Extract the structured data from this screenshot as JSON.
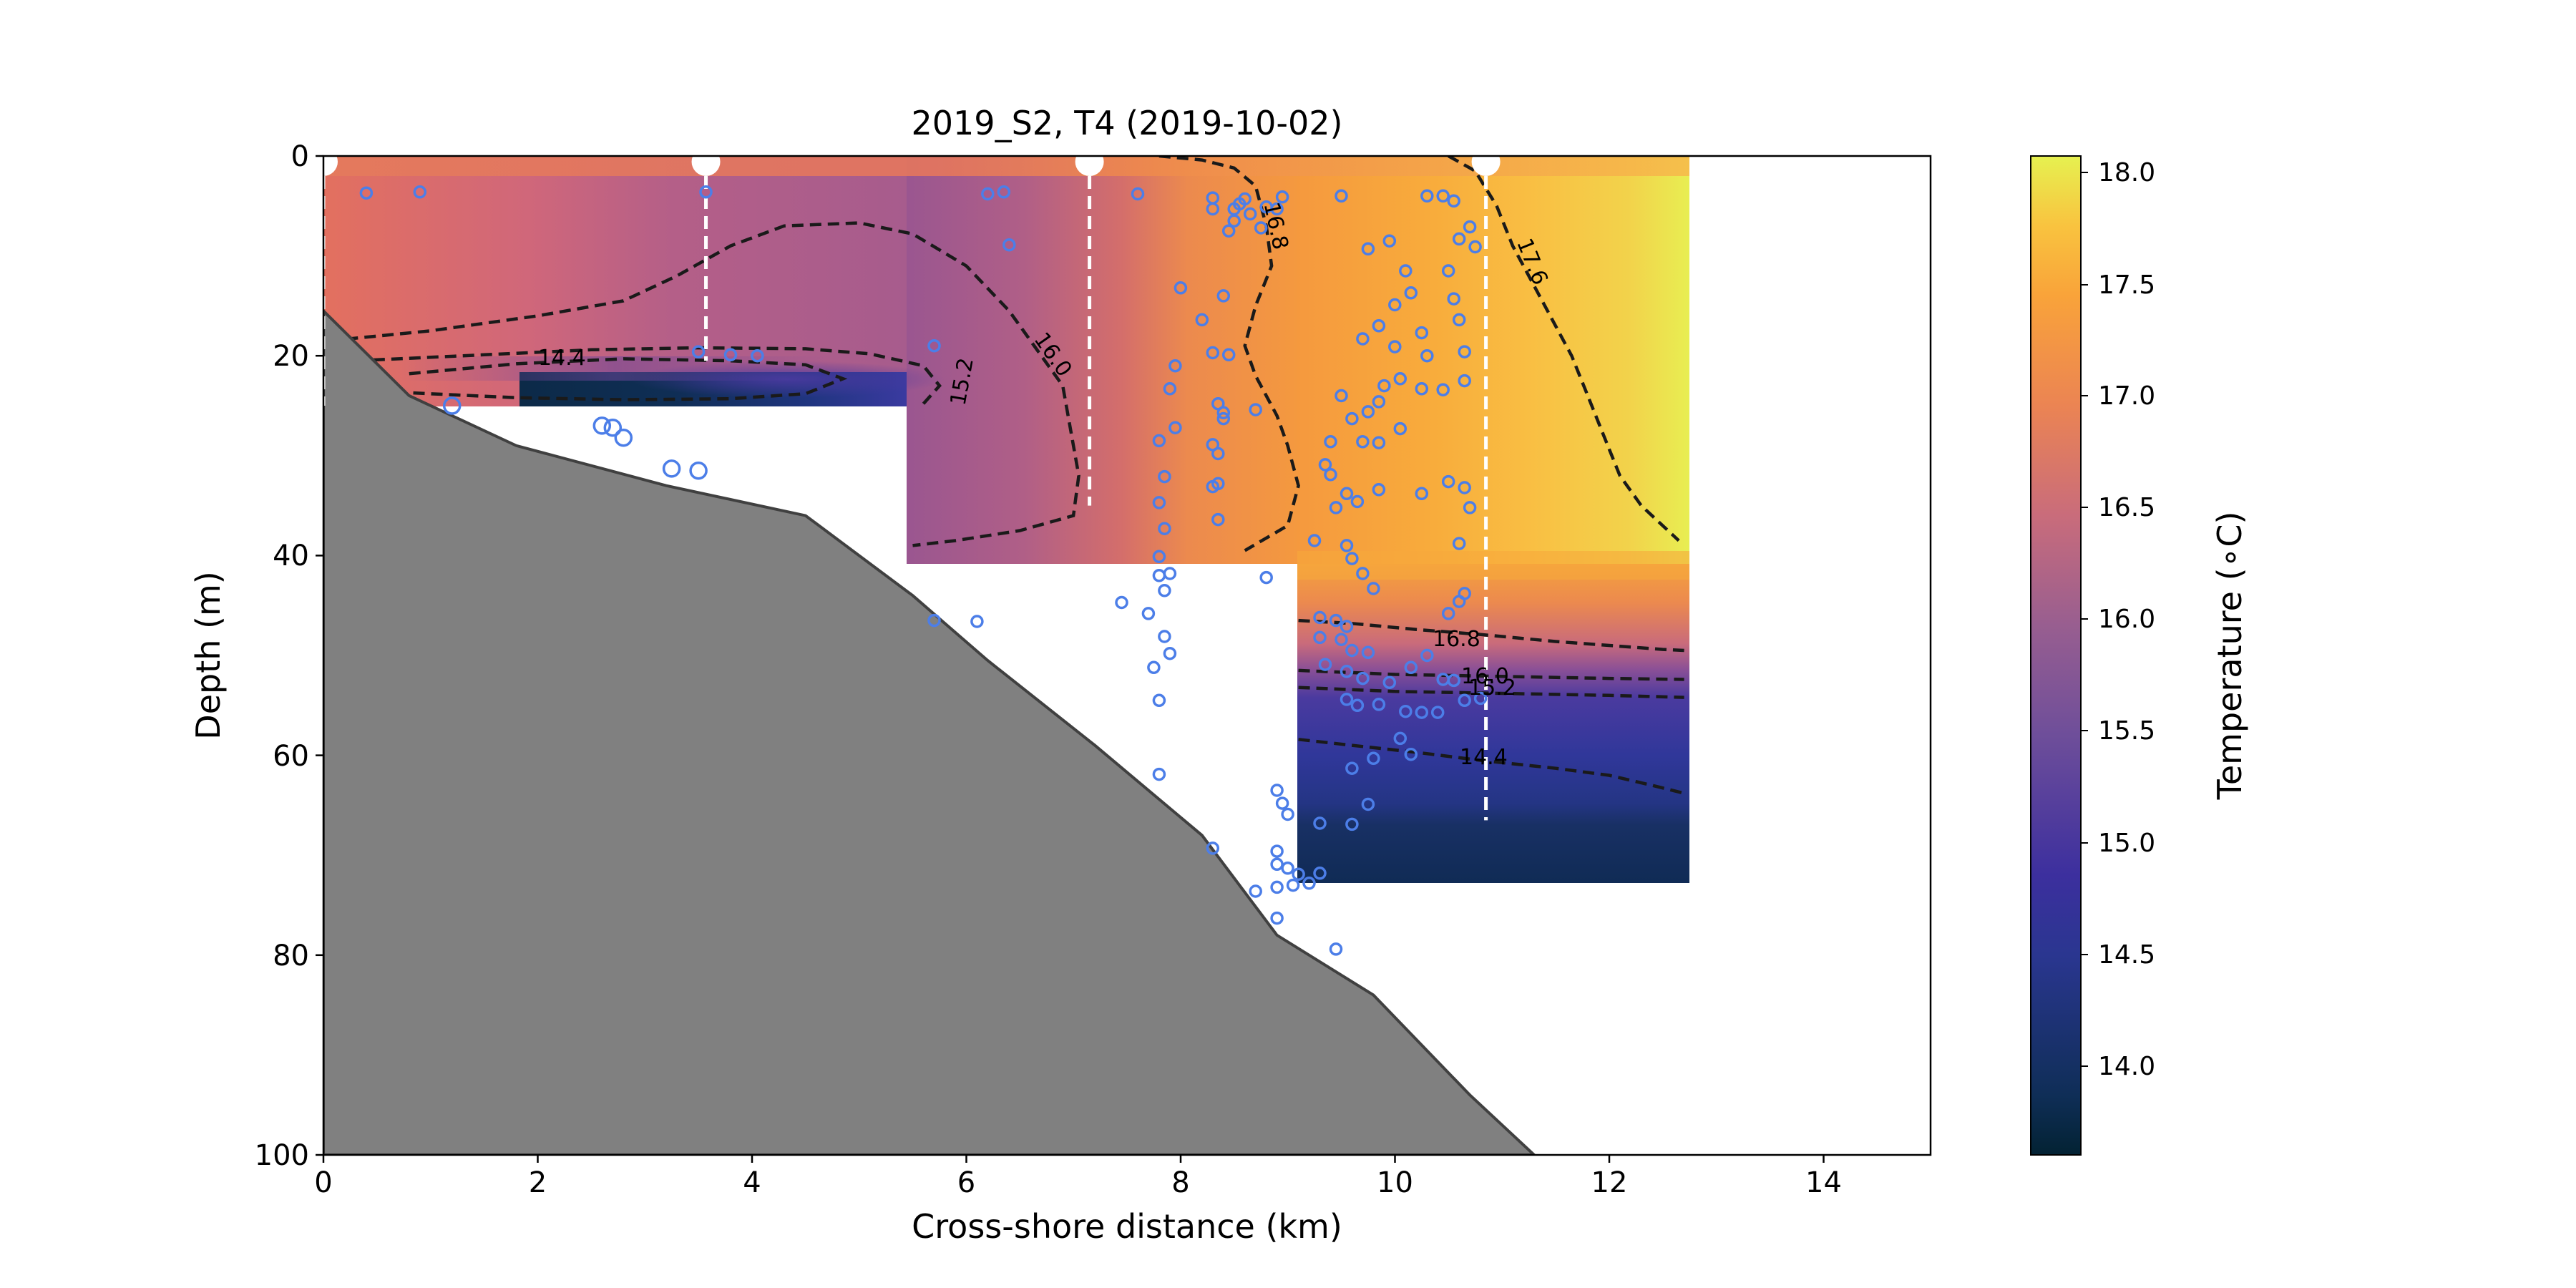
{
  "chart_data": {
    "type": "heatmap",
    "title": "2019_S2, T4 (2019-10-02)",
    "xlabel": "Cross-shore distance (km)",
    "ylabel": "Depth (m)",
    "xlim": [
      0,
      15
    ],
    "ylim": [
      100,
      0
    ],
    "xticks": [
      "0",
      "2",
      "4",
      "6",
      "8",
      "10",
      "12",
      "14"
    ],
    "yticks": [
      "0",
      "20",
      "40",
      "60",
      "80",
      "100"
    ],
    "colorbar": {
      "label": "Temperature (∘C)",
      "range": [
        13.6,
        18.1
      ],
      "ticks": [
        "14.0",
        "14.5",
        "15.0",
        "15.5",
        "16.0",
        "16.5",
        "17.0",
        "17.5",
        "18.0"
      ]
    },
    "bathymetry": {
      "x": [
        0,
        0.8,
        1.8,
        3.2,
        4.5,
        5.5,
        6.2,
        7.2,
        8.2,
        8.9,
        9.8,
        10.7,
        11.3
      ],
      "depth": [
        15.5,
        24,
        29,
        33,
        36,
        44,
        50.5,
        59,
        68,
        78,
        84,
        94,
        100
      ]
    },
    "casts": [
      {
        "x": 0.0,
        "max_depth": 25.0
      },
      {
        "x": 3.57,
        "max_depth": 20.5
      },
      {
        "x": 7.15,
        "max_depth": 35.0
      },
      {
        "x": 10.85,
        "max_depth": 66.5
      }
    ],
    "contour_labels": [
      "14.4",
      "15.2",
      "16.0",
      "16.8",
      "17.6",
      "16.8",
      "16.0",
      "15.2",
      "14.4"
    ],
    "contours": [
      {
        "level": 16.0,
        "x": [
          0.05,
          1.0,
          2.0,
          2.8,
          3.3,
          3.8,
          4.3,
          5.0,
          5.5,
          6.0,
          6.4,
          6.9,
          7.05,
          7.0,
          6.5,
          5.9,
          5.5
        ],
        "depth": [
          18.5,
          17.5,
          16,
          14.5,
          12,
          9,
          7,
          6.7,
          7.8,
          11,
          15.5,
          23,
          32,
          36,
          37.5,
          38.5,
          39
        ]
      },
      {
        "level": 15.2,
        "x": [
          0.3,
          1.5,
          2.5,
          3.5,
          4.5,
          5.1,
          5.6,
          5.75,
          5.6
        ],
        "depth": [
          20.5,
          19.9,
          19.4,
          19.2,
          19.3,
          19.8,
          21,
          23,
          24.8
        ]
      },
      {
        "level": 14.4,
        "x": [
          0.8,
          1.8,
          2.8,
          3.8,
          4.5,
          4.85,
          4.5,
          3.8,
          2.8,
          1.8,
          0.8
        ],
        "depth": [
          21.8,
          20.8,
          20.3,
          20.5,
          20.9,
          22.3,
          23.8,
          24.3,
          24.4,
          24.2,
          23.7
        ]
      },
      {
        "level": 16.8,
        "x": [
          7.8,
          8.2,
          8.5,
          8.7,
          8.8,
          8.85,
          8.7,
          8.6,
          8.7,
          8.9,
          9.0,
          9.1,
          9.0,
          8.6
        ],
        "depth": [
          0,
          0.4,
          1.2,
          3,
          7,
          11,
          15,
          19,
          22,
          26,
          29,
          33,
          37,
          39.5
        ]
      },
      {
        "level": 17.6,
        "x": [
          10.5,
          10.75,
          10.95,
          11.1,
          11.3,
          11.5,
          11.65,
          11.8,
          11.95,
          12.1,
          12.3,
          12.65
        ],
        "depth": [
          0,
          1.5,
          5,
          9,
          13,
          17,
          20,
          24,
          28,
          32,
          35,
          38.5
        ]
      },
      {
        "level": 16.8,
        "x": [
          9.1,
          9.6,
          10.2,
          10.8,
          11.5,
          12.0,
          12.5,
          12.7
        ],
        "depth": [
          46.5,
          46.8,
          47.4,
          47.9,
          48.6,
          49.0,
          49.4,
          49.5
        ]
      },
      {
        "level": 16.0,
        "x": [
          9.1,
          10.0,
          11.0,
          12.0,
          12.7
        ],
        "depth": [
          51.5,
          51.9,
          52.1,
          52.3,
          52.4
        ]
      },
      {
        "level": 15.2,
        "x": [
          9.1,
          10.0,
          11.0,
          12.0,
          12.7
        ],
        "depth": [
          53.2,
          53.6,
          53.8,
          54.0,
          54.2
        ]
      },
      {
        "level": 14.4,
        "x": [
          9.1,
          9.6,
          10.2,
          10.8,
          11.5,
          12.0,
          12.4,
          12.7
        ],
        "depth": [
          58.4,
          59.0,
          59.7,
          60.5,
          61.3,
          62.0,
          63.0,
          63.8
        ]
      }
    ],
    "sensor_points": [
      {
        "x": 0.4,
        "depth": 3.7
      },
      {
        "x": 0.9,
        "depth": 3.6
      },
      {
        "x": 3.57,
        "depth": 3.6
      },
      {
        "x": 3.5,
        "depth": 19.6
      },
      {
        "x": 3.8,
        "depth": 19.9
      },
      {
        "x": 4.05,
        "depth": 20.0
      },
      {
        "x": 5.7,
        "depth": 19.0
      },
      {
        "x": 6.2,
        "depth": 3.8
      },
      {
        "x": 6.35,
        "depth": 3.6
      },
      {
        "x": 6.4,
        "depth": 8.9
      },
      {
        "x": 1.2,
        "depth": 25.0
      },
      {
        "x": 2.6,
        "depth": 27.0
      },
      {
        "x": 2.7,
        "depth": 27.2
      },
      {
        "x": 2.8,
        "depth": 28.2
      },
      {
        "x": 3.25,
        "depth": 31.3
      },
      {
        "x": 3.5,
        "depth": 31.5
      },
      {
        "x": 5.7,
        "depth": 46.5
      },
      {
        "x": 6.1,
        "depth": 46.6
      },
      {
        "x": 7.45,
        "depth": 44.7
      },
      {
        "x": 7.6,
        "depth": 3.8
      },
      {
        "x": 8.0,
        "depth": 13.2
      },
      {
        "x": 7.95,
        "depth": 21.0
      },
      {
        "x": 7.9,
        "depth": 23.3
      },
      {
        "x": 7.8,
        "depth": 28.5
      },
      {
        "x": 7.95,
        "depth": 27.2
      },
      {
        "x": 7.85,
        "depth": 32.1
      },
      {
        "x": 7.8,
        "depth": 34.7
      },
      {
        "x": 7.85,
        "depth": 37.3
      },
      {
        "x": 7.8,
        "depth": 40.1
      },
      {
        "x": 7.9,
        "depth": 41.8
      },
      {
        "x": 7.8,
        "depth": 42.0
      },
      {
        "x": 7.85,
        "depth": 43.5
      },
      {
        "x": 7.7,
        "depth": 45.8
      },
      {
        "x": 7.85,
        "depth": 48.1
      },
      {
        "x": 7.9,
        "depth": 49.8
      },
      {
        "x": 7.75,
        "depth": 51.2
      },
      {
        "x": 7.8,
        "depth": 54.5
      },
      {
        "x": 7.8,
        "depth": 61.9
      },
      {
        "x": 8.3,
        "depth": 4.2
      },
      {
        "x": 8.3,
        "depth": 5.3
      },
      {
        "x": 8.5,
        "depth": 5.3
      },
      {
        "x": 8.55,
        "depth": 4.8
      },
      {
        "x": 8.6,
        "depth": 4.3
      },
      {
        "x": 8.5,
        "depth": 6.5
      },
      {
        "x": 8.45,
        "depth": 7.5
      },
      {
        "x": 8.65,
        "depth": 5.8
      },
      {
        "x": 8.75,
        "depth": 7.2
      },
      {
        "x": 8.8,
        "depth": 5.1
      },
      {
        "x": 8.9,
        "depth": 5.3
      },
      {
        "x": 8.95,
        "depth": 4.1
      },
      {
        "x": 8.2,
        "depth": 16.4
      },
      {
        "x": 8.4,
        "depth": 14.0
      },
      {
        "x": 8.3,
        "depth": 19.7
      },
      {
        "x": 8.45,
        "depth": 19.9
      },
      {
        "x": 8.35,
        "depth": 24.8
      },
      {
        "x": 8.4,
        "depth": 25.7
      },
      {
        "x": 8.4,
        "depth": 26.3
      },
      {
        "x": 8.7,
        "depth": 25.4
      },
      {
        "x": 8.3,
        "depth": 28.9
      },
      {
        "x": 8.35,
        "depth": 29.8
      },
      {
        "x": 8.35,
        "depth": 32.8
      },
      {
        "x": 8.3,
        "depth": 33.1
      },
      {
        "x": 8.35,
        "depth": 36.4
      },
      {
        "x": 8.8,
        "depth": 42.2
      },
      {
        "x": 8.9,
        "depth": 63.5
      },
      {
        "x": 8.95,
        "depth": 64.8
      },
      {
        "x": 9.0,
        "depth": 65.9
      },
      {
        "x": 8.9,
        "depth": 69.6
      },
      {
        "x": 8.9,
        "depth": 70.9
      },
      {
        "x": 9.0,
        "depth": 71.3
      },
      {
        "x": 8.9,
        "depth": 73.2
      },
      {
        "x": 9.05,
        "depth": 73.0
      },
      {
        "x": 9.1,
        "depth": 71.9
      },
      {
        "x": 9.2,
        "depth": 72.8
      },
      {
        "x": 9.3,
        "depth": 71.8
      },
      {
        "x": 8.7,
        "depth": 73.6
      },
      {
        "x": 8.9,
        "depth": 76.3
      },
      {
        "x": 9.45,
        "depth": 79.4
      },
      {
        "x": 8.3,
        "depth": 69.3
      },
      {
        "x": 9.5,
        "depth": 4.0
      },
      {
        "x": 9.75,
        "depth": 9.3
      },
      {
        "x": 9.95,
        "depth": 8.5
      },
      {
        "x": 10.1,
        "depth": 11.5
      },
      {
        "x": 10.3,
        "depth": 4.0
      },
      {
        "x": 10.45,
        "depth": 4.0
      },
      {
        "x": 10.55,
        "depth": 4.5
      },
      {
        "x": 10.6,
        "depth": 8.3
      },
      {
        "x": 10.7,
        "depth": 7.1
      },
      {
        "x": 10.75,
        "depth": 9.1
      },
      {
        "x": 10.5,
        "depth": 11.5
      },
      {
        "x": 10.55,
        "depth": 14.3
      },
      {
        "x": 10.0,
        "depth": 14.9
      },
      {
        "x": 10.15,
        "depth": 13.7
      },
      {
        "x": 10.25,
        "depth": 17.7
      },
      {
        "x": 9.85,
        "depth": 17.0
      },
      {
        "x": 9.7,
        "depth": 18.3
      },
      {
        "x": 10.0,
        "depth": 19.1
      },
      {
        "x": 10.3,
        "depth": 20.0
      },
      {
        "x": 10.6,
        "depth": 16.4
      },
      {
        "x": 10.65,
        "depth": 19.6
      },
      {
        "x": 10.65,
        "depth": 22.5
      },
      {
        "x": 10.45,
        "depth": 23.4
      },
      {
        "x": 10.25,
        "depth": 23.3
      },
      {
        "x": 10.05,
        "depth": 22.3
      },
      {
        "x": 9.9,
        "depth": 23.0
      },
      {
        "x": 9.85,
        "depth": 24.6
      },
      {
        "x": 9.75,
        "depth": 25.6
      },
      {
        "x": 9.6,
        "depth": 26.3
      },
      {
        "x": 9.5,
        "depth": 24.0
      },
      {
        "x": 10.05,
        "depth": 27.3
      },
      {
        "x": 9.85,
        "depth": 28.7
      },
      {
        "x": 9.7,
        "depth": 28.6
      },
      {
        "x": 9.4,
        "depth": 28.6
      },
      {
        "x": 9.35,
        "depth": 30.9
      },
      {
        "x": 9.4,
        "depth": 31.9
      },
      {
        "x": 9.45,
        "depth": 35.2
      },
      {
        "x": 9.55,
        "depth": 33.8
      },
      {
        "x": 9.65,
        "depth": 34.6
      },
      {
        "x": 9.85,
        "depth": 33.4
      },
      {
        "x": 10.25,
        "depth": 33.8
      },
      {
        "x": 10.5,
        "depth": 32.6
      },
      {
        "x": 10.65,
        "depth": 33.2
      },
      {
        "x": 10.7,
        "depth": 35.2
      },
      {
        "x": 10.6,
        "depth": 38.8
      },
      {
        "x": 9.25,
        "depth": 38.5
      },
      {
        "x": 9.55,
        "depth": 39.0
      },
      {
        "x": 9.6,
        "depth": 40.3
      },
      {
        "x": 9.7,
        "depth": 41.8
      },
      {
        "x": 9.8,
        "depth": 43.3
      },
      {
        "x": 10.65,
        "depth": 43.8
      },
      {
        "x": 10.6,
        "depth": 44.6
      },
      {
        "x": 10.5,
        "depth": 45.8
      },
      {
        "x": 9.3,
        "depth": 46.2
      },
      {
        "x": 9.45,
        "depth": 46.5
      },
      {
        "x": 9.55,
        "depth": 47.1
      },
      {
        "x": 9.3,
        "depth": 48.2
      },
      {
        "x": 9.5,
        "depth": 48.4
      },
      {
        "x": 9.6,
        "depth": 49.5
      },
      {
        "x": 9.75,
        "depth": 49.7
      },
      {
        "x": 9.35,
        "depth": 50.9
      },
      {
        "x": 9.55,
        "depth": 51.6
      },
      {
        "x": 9.7,
        "depth": 52.3
      },
      {
        "x": 9.95,
        "depth": 52.7
      },
      {
        "x": 9.55,
        "depth": 54.4
      },
      {
        "x": 9.65,
        "depth": 55.0
      },
      {
        "x": 9.85,
        "depth": 54.9
      },
      {
        "x": 10.15,
        "depth": 51.2
      },
      {
        "x": 10.3,
        "depth": 50.0
      },
      {
        "x": 10.45,
        "depth": 52.4
      },
      {
        "x": 10.55,
        "depth": 52.5
      },
      {
        "x": 10.65,
        "depth": 54.5
      },
      {
        "x": 10.8,
        "depth": 54.3
      },
      {
        "x": 10.1,
        "depth": 55.6
      },
      {
        "x": 10.25,
        "depth": 55.7
      },
      {
        "x": 10.4,
        "depth": 55.7
      },
      {
        "x": 10.05,
        "depth": 58.3
      },
      {
        "x": 10.15,
        "depth": 59.9
      },
      {
        "x": 9.8,
        "depth": 60.3
      },
      {
        "x": 9.6,
        "depth": 61.3
      },
      {
        "x": 9.6,
        "depth": 66.9
      },
      {
        "x": 9.75,
        "depth": 64.9
      },
      {
        "x": 9.3,
        "depth": 66.8
      }
    ]
  }
}
